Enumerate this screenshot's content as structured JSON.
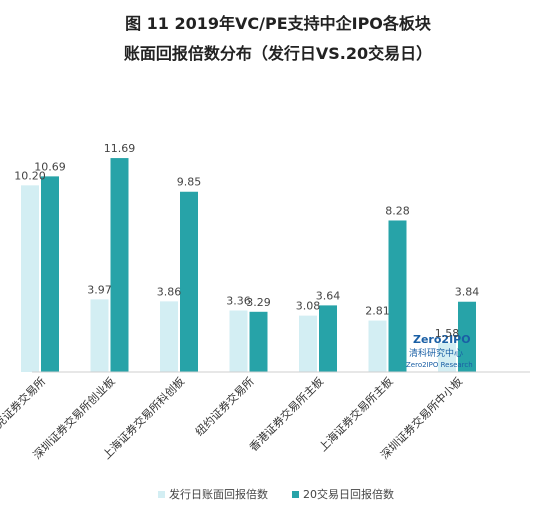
{
  "chart_data": {
    "type": "bar",
    "title_line1": "图 11 2019年VC/PE支持中企IPO各板块",
    "title_line2": "账面回报倍数分布（发行日VS.20交易日）",
    "categories": [
      "纳斯达克证券交易所",
      "深圳证券交易所创业板",
      "上海证券交易所科创板",
      "纽约证券交易所",
      "香港证券交易所主板",
      "上海证券交易所主板",
      "深圳证券交易所中小板"
    ],
    "series": [
      {
        "name": "发行日账面回报倍数",
        "color": "#d3eef3",
        "values": [
          10.2,
          3.97,
          3.86,
          3.36,
          3.08,
          2.81,
          1.58
        ],
        "labels": [
          "10.20",
          "3.97",
          "3.86",
          "3.36",
          "3.08",
          "2.81",
          "1.58"
        ]
      },
      {
        "name": "20交易日回报倍数",
        "color": "#27a3a8",
        "values": [
          10.69,
          11.69,
          9.85,
          3.29,
          3.64,
          8.28,
          3.84
        ],
        "labels": [
          "10.69",
          "11.69",
          "9.85",
          "3.29",
          "3.64",
          "8.28",
          "3.84"
        ]
      }
    ],
    "ylim": [
      0,
      13
    ],
    "grid": false,
    "legend": "bottom"
  },
  "watermark": {
    "logo": "Zero2IPO",
    "cn": "清科研究中心",
    "en": "Zero2IPO Research"
  }
}
